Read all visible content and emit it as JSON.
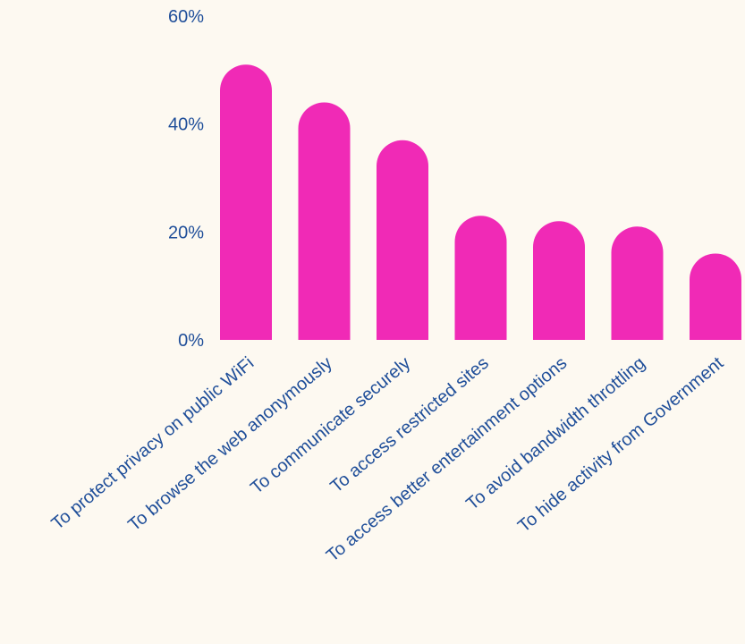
{
  "chart_data": {
    "type": "bar",
    "title": "",
    "xlabel": "",
    "ylabel": "",
    "categories": [
      "To protect privacy on public WiFi",
      "To browse the web anonymously",
      "To communicate securely",
      "To access restricted sites",
      "To access better entertainment options",
      "To avoid bandwidth throttling",
      "To hide activity from Government"
    ],
    "values": [
      51,
      44,
      37,
      23,
      22,
      21,
      16
    ],
    "ylim": [
      0,
      60
    ],
    "yticks": [
      "0%",
      "20%",
      "40%",
      "60%"
    ],
    "ytick_values": [
      0,
      20,
      40,
      60
    ],
    "grid": false,
    "legend": "none",
    "colors": {
      "bar": "#f02ab6",
      "text": "#1f4e99",
      "background": "#fdf9f1"
    }
  }
}
